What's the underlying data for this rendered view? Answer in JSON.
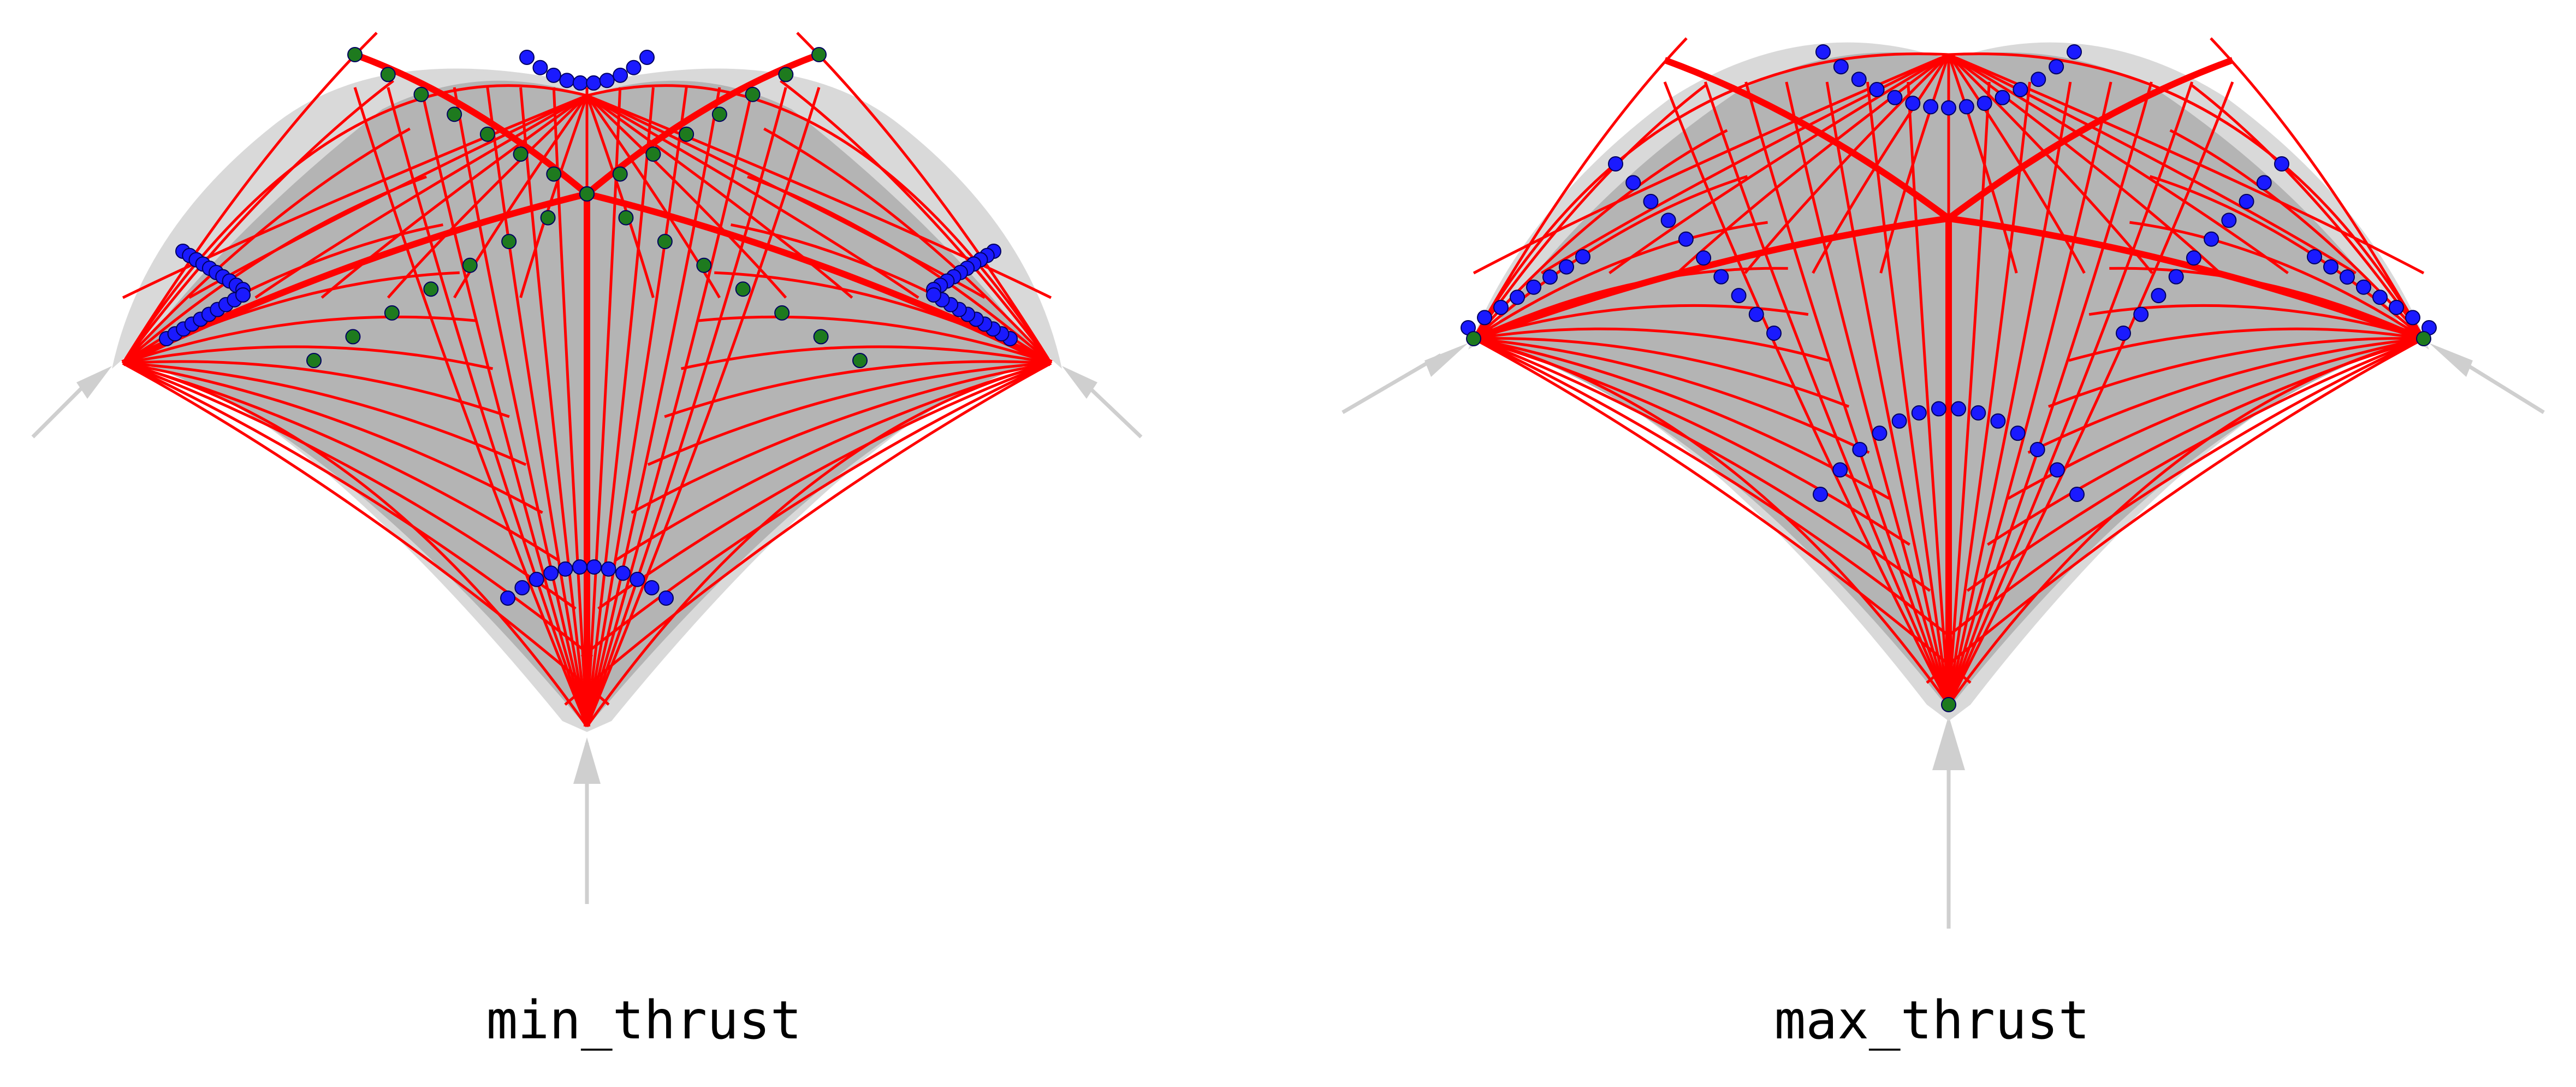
{
  "colors": {
    "background": "#ffffff",
    "shell_outer": "#d9d9d9",
    "shell_inner": "#b4b4b4",
    "support": "#cfcfcf",
    "force_line": "#ff0000",
    "node_blue": "#1a1aff",
    "node_green": "#1e7a1e",
    "label_text": "#000000"
  },
  "panels": [
    {
      "id": "left",
      "label": "min_thrust",
      "variant": "min"
    },
    {
      "id": "right",
      "label": "max_thrust",
      "variant": "max"
    }
  ]
}
